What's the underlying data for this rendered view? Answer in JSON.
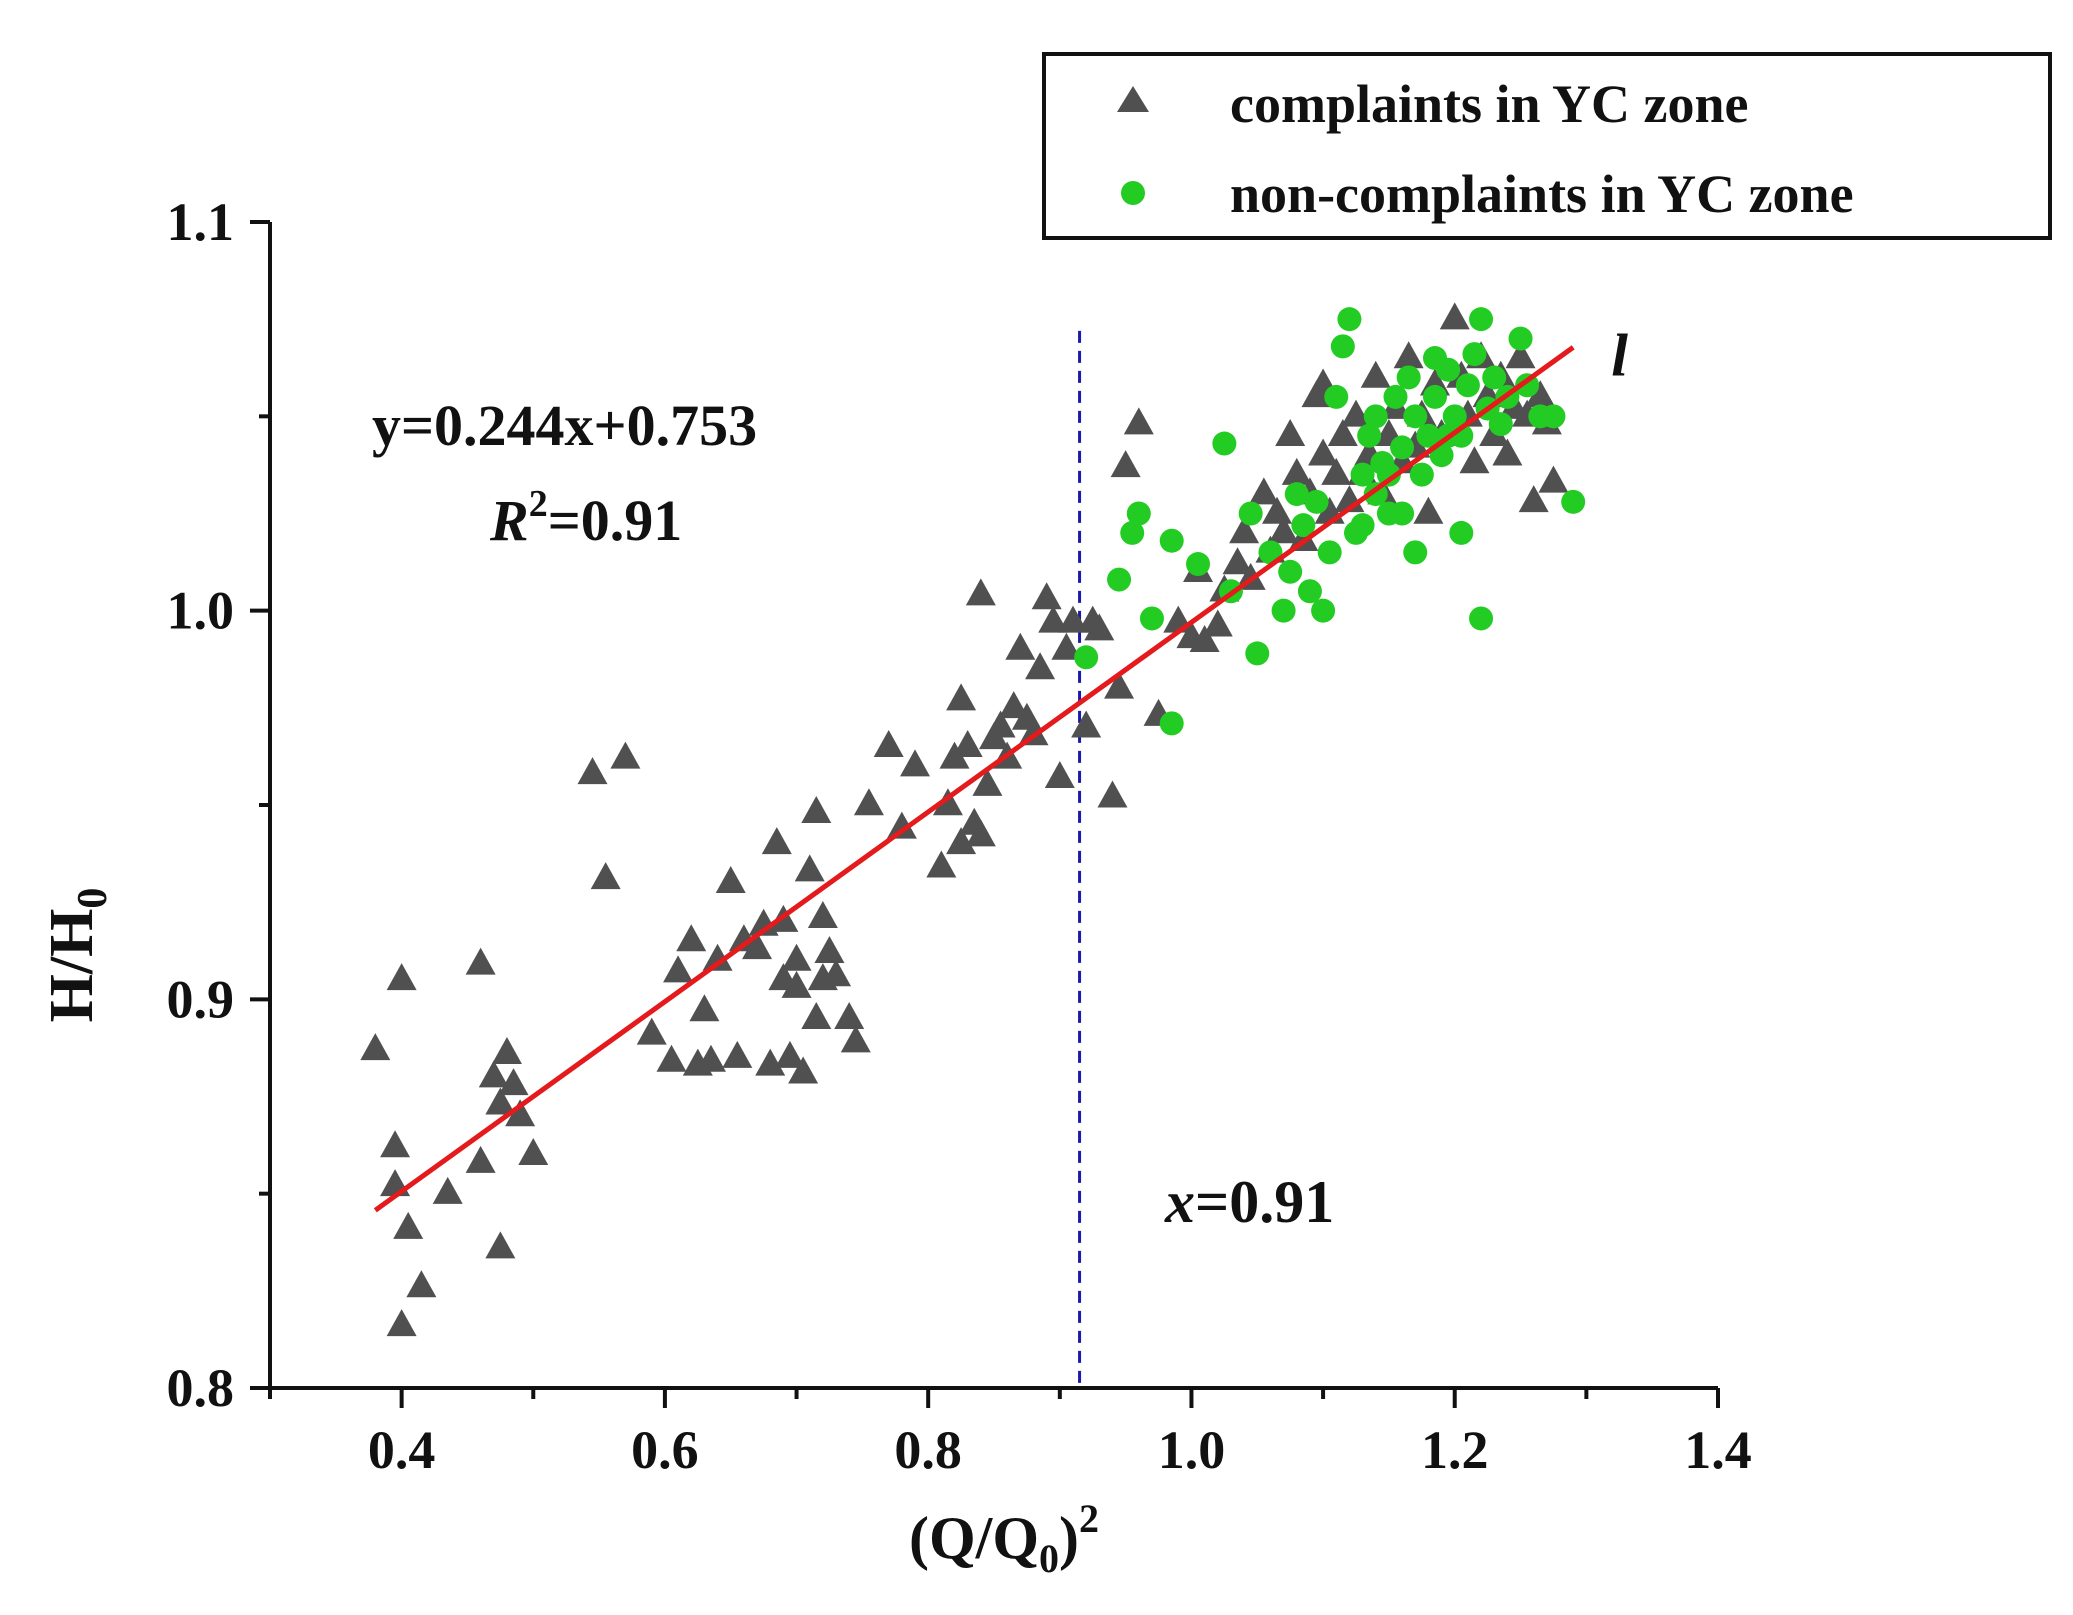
{
  "chart_data": {
    "type": "scatter",
    "xlabel": "(Q/Q",
    "xlabel_sub": "0",
    "xlabel_tail": ")",
    "xlabel_sup": "2",
    "ylabel": "H/H",
    "ylabel_sub": "0",
    "xlim": [
      0.3,
      1.4
    ],
    "ylim": [
      0.8,
      1.1
    ],
    "x_ticks": [
      "0.4",
      "0.6",
      "0.8",
      "1.0",
      "1.2",
      "1.4"
    ],
    "y_ticks": [
      "0.8",
      "0.9",
      "1.0",
      "1.1"
    ],
    "grid": false,
    "legend_position": "top-right",
    "colors": {
      "complaints": "#505050",
      "non_complaints": "#22cc22",
      "fit_line": "#e41a1c",
      "threshold_line": "#1a1aa8"
    },
    "fit_line": {
      "slope": 0.244,
      "intercept": 0.753,
      "x_range": [
        0.38,
        1.29
      ],
      "label": "l"
    },
    "threshold": {
      "x": 0.915
    },
    "annotations": {
      "equation": "y=0.244x+0.753",
      "r2_letter": "R",
      "r2_sup": "2",
      "r2_value": "=0.91",
      "x_italic": "x",
      "x_value": "=0.91"
    },
    "series": [
      {
        "name": "complaints in YC zone",
        "marker": "triangle",
        "points": [
          [
            0.38,
            0.887
          ],
          [
            0.395,
            0.862
          ],
          [
            0.395,
            0.852
          ],
          [
            0.4,
            0.905
          ],
          [
            0.405,
            0.841
          ],
          [
            0.4,
            0.816
          ],
          [
            0.415,
            0.826
          ],
          [
            0.435,
            0.85
          ],
          [
            0.46,
            0.858
          ],
          [
            0.46,
            0.909
          ],
          [
            0.47,
            0.88
          ],
          [
            0.475,
            0.836
          ],
          [
            0.475,
            0.873
          ],
          [
            0.48,
            0.886
          ],
          [
            0.485,
            0.878
          ],
          [
            0.49,
            0.87
          ],
          [
            0.5,
            0.86
          ],
          [
            0.545,
            0.958
          ],
          [
            0.555,
            0.931
          ],
          [
            0.57,
            0.962
          ],
          [
            0.59,
            0.891
          ],
          [
            0.605,
            0.884
          ],
          [
            0.61,
            0.907
          ],
          [
            0.62,
            0.915
          ],
          [
            0.625,
            0.883
          ],
          [
            0.63,
            0.897
          ],
          [
            0.635,
            0.884
          ],
          [
            0.64,
            0.91
          ],
          [
            0.65,
            0.93
          ],
          [
            0.655,
            0.885
          ],
          [
            0.66,
            0.915
          ],
          [
            0.67,
            0.913
          ],
          [
            0.675,
            0.919
          ],
          [
            0.68,
            0.883
          ],
          [
            0.685,
            0.94
          ],
          [
            0.69,
            0.92
          ],
          [
            0.69,
            0.905
          ],
          [
            0.695,
            0.885
          ],
          [
            0.7,
            0.91
          ],
          [
            0.7,
            0.903
          ],
          [
            0.705,
            0.881
          ],
          [
            0.71,
            0.933
          ],
          [
            0.715,
            0.895
          ],
          [
            0.715,
            0.948
          ],
          [
            0.72,
            0.905
          ],
          [
            0.72,
            0.921
          ],
          [
            0.725,
            0.912
          ],
          [
            0.73,
            0.906
          ],
          [
            0.74,
            0.895
          ],
          [
            0.745,
            0.889
          ],
          [
            0.755,
            0.95
          ],
          [
            0.77,
            0.965
          ],
          [
            0.78,
            0.944
          ],
          [
            0.79,
            0.96
          ],
          [
            0.81,
            0.934
          ],
          [
            0.815,
            0.95
          ],
          [
            0.82,
            0.962
          ],
          [
            0.825,
            0.977
          ],
          [
            0.825,
            0.94
          ],
          [
            0.83,
            0.965
          ],
          [
            0.835,
            0.945
          ],
          [
            0.84,
            0.942
          ],
          [
            0.84,
            1.004
          ],
          [
            0.845,
            0.955
          ],
          [
            0.85,
            0.967
          ],
          [
            0.855,
            0.97
          ],
          [
            0.86,
            0.962
          ],
          [
            0.865,
            0.975
          ],
          [
            0.87,
            0.99
          ],
          [
            0.875,
            0.972
          ],
          [
            0.88,
            0.968
          ],
          [
            0.885,
            0.985
          ],
          [
            0.89,
            1.003
          ],
          [
            0.895,
            0.997
          ],
          [
            0.9,
            0.957
          ],
          [
            0.905,
            0.99
          ],
          [
            0.91,
            0.997
          ],
          [
            0.92,
            0.97
          ],
          [
            0.925,
            0.997
          ],
          [
            0.93,
            0.995
          ],
          [
            0.94,
            0.952
          ],
          [
            0.945,
            0.98
          ],
          [
            0.95,
            1.037
          ],
          [
            0.96,
            1.048
          ],
          [
            0.975,
            0.973
          ],
          [
            0.99,
            0.997
          ],
          [
            1.0,
            0.993
          ],
          [
            1.005,
            1.01
          ],
          [
            1.01,
            0.992
          ],
          [
            1.02,
            0.996
          ],
          [
            1.025,
            1.005
          ],
          [
            1.035,
            1.012
          ],
          [
            1.04,
            1.02
          ],
          [
            1.045,
            1.008
          ],
          [
            1.055,
            1.03
          ],
          [
            1.06,
            1.015
          ],
          [
            1.065,
            1.025
          ],
          [
            1.07,
            1.02
          ],
          [
            1.075,
            1.045
          ],
          [
            1.08,
            1.035
          ],
          [
            1.085,
            1.018
          ],
          [
            1.09,
            1.03
          ],
          [
            1.095,
            1.055
          ],
          [
            1.1,
            1.04
          ],
          [
            1.1,
            1.058
          ],
          [
            1.105,
            1.025
          ],
          [
            1.11,
            1.035
          ],
          [
            1.115,
            1.045
          ],
          [
            1.12,
            1.028
          ],
          [
            1.125,
            1.05
          ],
          [
            1.13,
            1.035
          ],
          [
            1.135,
            1.04
          ],
          [
            1.14,
            1.06
          ],
          [
            1.145,
            1.03
          ],
          [
            1.15,
            1.045
          ],
          [
            1.155,
            1.052
          ],
          [
            1.16,
            1.038
          ],
          [
            1.165,
            1.065
          ],
          [
            1.17,
            1.042
          ],
          [
            1.175,
            1.05
          ],
          [
            1.18,
            1.025
          ],
          [
            1.185,
            1.058
          ],
          [
            1.19,
            1.045
          ],
          [
            1.2,
            1.075
          ],
          [
            1.205,
            1.06
          ],
          [
            1.21,
            1.05
          ],
          [
            1.215,
            1.038
          ],
          [
            1.22,
            1.065
          ],
          [
            1.225,
            1.055
          ],
          [
            1.23,
            1.045
          ],
          [
            1.235,
            1.06
          ],
          [
            1.24,
            1.04
          ],
          [
            1.245,
            1.052
          ],
          [
            1.25,
            1.065
          ],
          [
            1.255,
            1.05
          ],
          [
            1.26,
            1.028
          ],
          [
            1.265,
            1.055
          ],
          [
            1.275,
            1.033
          ],
          [
            1.27,
            1.048
          ]
        ]
      },
      {
        "name": "non-complaints in YC zone",
        "marker": "circle",
        "points": [
          [
            0.92,
            0.988
          ],
          [
            0.945,
            1.008
          ],
          [
            0.955,
            1.02
          ],
          [
            0.96,
            1.025
          ],
          [
            0.97,
            0.998
          ],
          [
            0.985,
            0.971
          ],
          [
            0.985,
            1.018
          ],
          [
            1.005,
            1.012
          ],
          [
            1.025,
            1.043
          ],
          [
            1.03,
            1.005
          ],
          [
            1.045,
            1.025
          ],
          [
            1.05,
            0.989
          ],
          [
            1.06,
            1.015
          ],
          [
            1.07,
            1.0
          ],
          [
            1.075,
            1.01
          ],
          [
            1.08,
            1.03
          ],
          [
            1.085,
            1.022
          ],
          [
            1.09,
            1.005
          ],
          [
            1.095,
            1.028
          ],
          [
            1.1,
            1.0
          ],
          [
            1.105,
            1.015
          ],
          [
            1.11,
            1.055
          ],
          [
            1.115,
            1.068
          ],
          [
            1.12,
            1.075
          ],
          [
            1.125,
            1.02
          ],
          [
            1.13,
            1.035
          ],
          [
            1.135,
            1.045
          ],
          [
            1.14,
            1.05
          ],
          [
            1.14,
            1.03
          ],
          [
            1.145,
            1.038
          ],
          [
            1.15,
            1.025
          ],
          [
            1.155,
            1.055
          ],
          [
            1.16,
            1.042
          ],
          [
            1.165,
            1.06
          ],
          [
            1.17,
            1.015
          ],
          [
            1.17,
            1.05
          ],
          [
            1.175,
            1.035
          ],
          [
            1.18,
            1.045
          ],
          [
            1.185,
            1.055
          ],
          [
            1.19,
            1.04
          ],
          [
            1.195,
            1.062
          ],
          [
            1.2,
            1.05
          ],
          [
            1.205,
            1.045
          ],
          [
            1.21,
            1.058
          ],
          [
            1.215,
            1.066
          ],
          [
            1.22,
            1.075
          ],
          [
            1.22,
            0.998
          ],
          [
            1.225,
            1.052
          ],
          [
            1.23,
            1.06
          ],
          [
            1.235,
            1.048
          ],
          [
            1.24,
            1.055
          ],
          [
            1.25,
            1.07
          ],
          [
            1.255,
            1.058
          ],
          [
            1.265,
            1.05
          ],
          [
            1.275,
            1.05
          ],
          [
            1.29,
            1.028
          ],
          [
            1.16,
            1.025
          ],
          [
            1.15,
            1.035
          ],
          [
            1.195,
            1.045
          ],
          [
            1.205,
            1.02
          ],
          [
            1.13,
            1.022
          ],
          [
            1.185,
            1.065
          ]
        ]
      }
    ]
  }
}
